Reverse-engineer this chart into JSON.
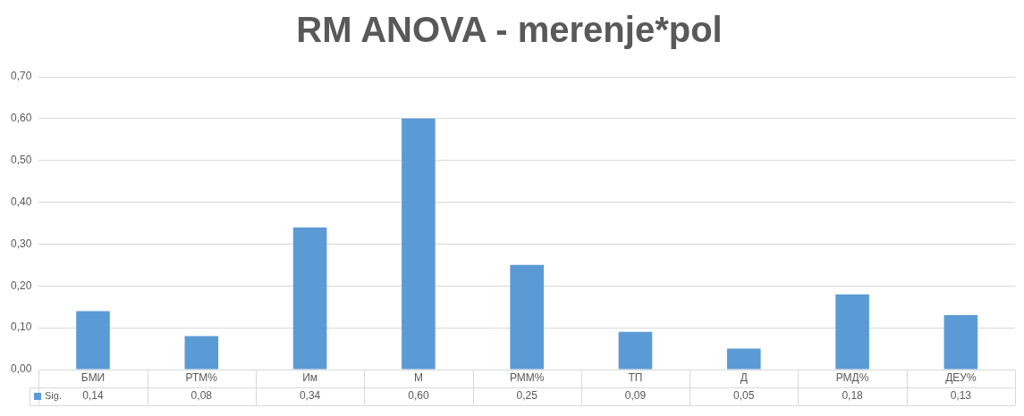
{
  "chart_data": {
    "type": "bar",
    "title": "RM ANOVA - merenje*pol",
    "categories": [
      "БМИ",
      "РТМ%",
      "Им",
      "М",
      "РММ%",
      "ТП",
      "Д",
      "РМД%",
      "ДЕУ%"
    ],
    "series": [
      {
        "name": "Sig.",
        "color": "#5b9bd5",
        "values": [
          0.14,
          0.08,
          0.34,
          0.6,
          0.25,
          0.09,
          0.05,
          0.18,
          0.13
        ],
        "value_labels": [
          "0,14",
          "0,08",
          "0,34",
          "0,60",
          "0,25",
          "0,09",
          "0,05",
          "0,18",
          "0,13"
        ]
      }
    ],
    "ylim": [
      0,
      0.7
    ],
    "yticks": [
      {
        "value": 0,
        "label": "0,00"
      },
      {
        "value": 0.1,
        "label": "0,10"
      },
      {
        "value": 0.2,
        "label": "0,20"
      },
      {
        "value": 0.3,
        "label": "0,30"
      },
      {
        "value": 0.4,
        "label": "0,40"
      },
      {
        "value": 0.5,
        "label": "0,50"
      },
      {
        "value": 0.6,
        "label": "0,60"
      },
      {
        "value": 0.7,
        "label": "0,70"
      }
    ],
    "grid": "y",
    "legend": "bottom left"
  }
}
